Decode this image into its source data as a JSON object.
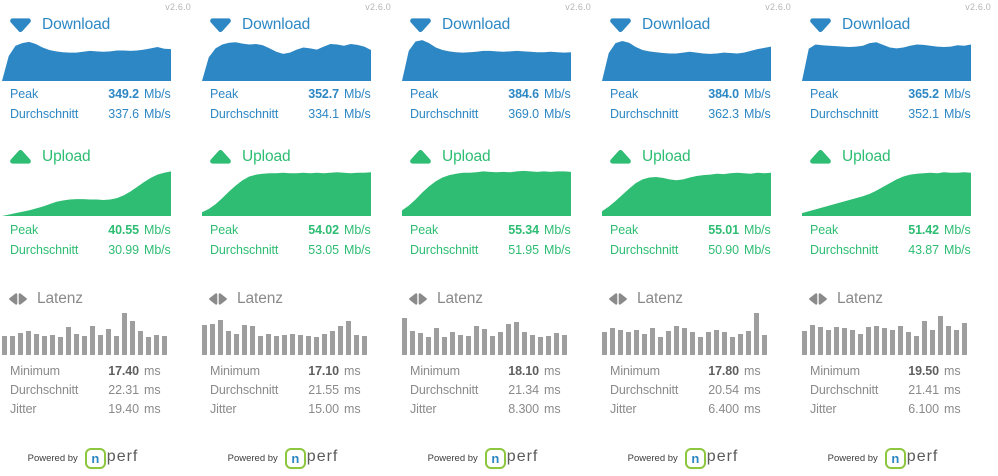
{
  "version": "v2.6.0",
  "powered_by": "Powered by",
  "logo": {
    "n": "n",
    "perf": "perf"
  },
  "labels": {
    "download": "Download",
    "upload": "Upload",
    "latency": "Latenz",
    "peak": "Peak",
    "avg": "Durchschnitt",
    "min": "Minimum",
    "jitter": "Jitter",
    "mbps": "Mb/s",
    "ms": "ms"
  },
  "colors": {
    "download": "#2D87C4",
    "upload": "#2EBD73",
    "latency_bar": "#9E9E9E",
    "latency_text": "#8A8A8A",
    "latency_text_dark": "#5F5F5F",
    "version_text": "#B5B5B5",
    "logo_green": "#8DC63F"
  },
  "columns": [
    {
      "download": {
        "peak": "349.2",
        "avg": "337.6"
      },
      "upload": {
        "peak": "40.55",
        "avg": "30.99"
      },
      "latency": {
        "min": "17.40",
        "avg": "22.31",
        "jitter": "19.40"
      }
    },
    {
      "download": {
        "peak": "352.7",
        "avg": "334.1"
      },
      "upload": {
        "peak": "54.02",
        "avg": "53.05"
      },
      "latency": {
        "min": "17.10",
        "avg": "21.55",
        "jitter": "15.00"
      }
    },
    {
      "download": {
        "peak": "384.6",
        "avg": "369.0"
      },
      "upload": {
        "peak": "55.34",
        "avg": "51.95"
      },
      "latency": {
        "min": "18.10",
        "avg": "21.34",
        "jitter": "8.300"
      }
    },
    {
      "download": {
        "peak": "384.0",
        "avg": "362.3"
      },
      "upload": {
        "peak": "55.01",
        "avg": "50.90"
      },
      "latency": {
        "min": "17.80",
        "avg": "20.54",
        "jitter": "6.400"
      }
    },
    {
      "download": {
        "peak": "365.2",
        "avg": "352.1"
      },
      "upload": {
        "peak": "51.42",
        "avg": "43.87"
      },
      "latency": {
        "min": "19.50",
        "avg": "21.41",
        "jitter": "6.100"
      }
    }
  ],
  "chart_data": [
    {
      "column": 1,
      "download": {
        "type": "area",
        "unit": "Mb/s",
        "peak": 349.2,
        "average": 337.6,
        "points_pct": [
          0,
          58,
          82,
          88,
          91,
          86,
          78,
          72,
          69,
          67,
          66,
          66,
          68,
          70,
          69,
          68,
          69,
          71,
          71,
          70,
          71,
          73,
          76,
          79,
          75,
          74
        ]
      },
      "upload": {
        "type": "area",
        "unit": "Mb/s",
        "peak": 40.55,
        "average": 30.99,
        "points_pct": [
          0,
          3,
          6,
          9,
          12,
          16,
          20,
          25,
          30,
          33,
          35,
          36,
          36,
          35,
          35,
          34,
          35,
          38,
          44,
          52,
          62,
          72,
          81,
          88,
          92,
          95
        ]
      },
      "latency": {
        "type": "bar",
        "unit": "ms",
        "minimum": 17.4,
        "average": 22.31,
        "jitter": 19.4,
        "bars_pct": [
          46,
          46,
          52,
          58,
          50,
          46,
          48,
          44,
          66,
          50,
          46,
          70,
          48,
          62,
          46,
          100,
          80,
          58,
          44,
          48,
          46
        ]
      }
    },
    {
      "column": 2,
      "download": {
        "type": "area",
        "unit": "Mb/s",
        "peak": 352.7,
        "average": 334.1,
        "points_pct": [
          0,
          55,
          76,
          85,
          89,
          90,
          87,
          85,
          86,
          83,
          76,
          68,
          63,
          66,
          73,
          78,
          76,
          73,
          80,
          86,
          85,
          82,
          86,
          84,
          80,
          72
        ]
      },
      "upload": {
        "type": "area",
        "unit": "Mb/s",
        "peak": 54.02,
        "average": 53.05,
        "points_pct": [
          8,
          15,
          25,
          38,
          52,
          65,
          76,
          84,
          88,
          90,
          91,
          91,
          92,
          91,
          91,
          92,
          91,
          92,
          91,
          92,
          93,
          92,
          91,
          92,
          92,
          93
        ]
      },
      "latency": {
        "type": "bar",
        "unit": "ms",
        "minimum": 17.1,
        "average": 21.55,
        "jitter": 15.0,
        "bars_pct": [
          72,
          74,
          84,
          58,
          50,
          72,
          70,
          46,
          50,
          46,
          48,
          50,
          48,
          46,
          44,
          50,
          56,
          68,
          80,
          48,
          46
        ]
      }
    },
    {
      "column": 3,
      "download": {
        "type": "area",
        "unit": "Mb/s",
        "peak": 384.6,
        "average": 369.0,
        "points_pct": [
          0,
          70,
          92,
          95,
          88,
          78,
          72,
          69,
          67,
          66,
          67,
          68,
          70,
          70,
          69,
          68,
          69,
          70,
          69,
          68,
          67,
          67,
          68,
          67,
          66,
          67
        ]
      },
      "upload": {
        "type": "area",
        "unit": "Mb/s",
        "peak": 55.34,
        "average": 51.95,
        "points_pct": [
          12,
          22,
          35,
          50,
          63,
          74,
          82,
          87,
          90,
          92,
          92,
          93,
          95,
          94,
          93,
          94,
          93,
          95,
          96,
          95,
          94,
          95,
          94,
          95,
          95,
          94
        ]
      },
      "latency": {
        "type": "bar",
        "unit": "ms",
        "minimum": 18.1,
        "average": 21.34,
        "jitter": 8.3,
        "bars_pct": [
          88,
          58,
          52,
          44,
          64,
          44,
          54,
          48,
          46,
          68,
          62,
          46,
          54,
          74,
          78,
          54,
          48,
          44,
          46,
          52,
          48
        ]
      }
    },
    {
      "column": 4,
      "download": {
        "type": "area",
        "unit": "Mb/s",
        "peak": 384.0,
        "average": 362.3,
        "points_pct": [
          0,
          65,
          88,
          93,
          89,
          79,
          72,
          69,
          67,
          65,
          64,
          64,
          66,
          68,
          66,
          64,
          63,
          64,
          66,
          65,
          64,
          66,
          70,
          74,
          77,
          80
        ]
      },
      "upload": {
        "type": "area",
        "unit": "Mb/s",
        "peak": 55.01,
        "average": 50.9,
        "points_pct": [
          10,
          20,
          32,
          45,
          58,
          70,
          78,
          82,
          83,
          81,
          78,
          76,
          78,
          82,
          85,
          87,
          88,
          90,
          89,
          91,
          92,
          91,
          90,
          92,
          91,
          92
        ]
      },
      "latency": {
        "type": "bar",
        "unit": "ms",
        "minimum": 17.8,
        "average": 20.54,
        "jitter": 6.4,
        "bars_pct": [
          54,
          64,
          60,
          54,
          60,
          50,
          64,
          44,
          58,
          68,
          64,
          54,
          44,
          54,
          60,
          54,
          44,
          50,
          58,
          100,
          48
        ]
      }
    },
    {
      "column": 5,
      "download": {
        "type": "area",
        "unit": "Mb/s",
        "peak": 365.2,
        "average": 352.1,
        "points_pct": [
          0,
          75,
          85,
          83,
          82,
          81,
          80,
          79,
          80,
          82,
          88,
          90,
          84,
          78,
          76,
          78,
          82,
          85,
          84,
          82,
          80,
          79,
          80,
          83,
          82,
          85
        ]
      },
      "upload": {
        "type": "area",
        "unit": "Mb/s",
        "peak": 51.42,
        "average": 43.87,
        "points_pct": [
          6,
          10,
          14,
          18,
          22,
          26,
          30,
          34,
          38,
          42,
          47,
          54,
          62,
          70,
          78,
          84,
          88,
          90,
          91,
          92,
          91,
          93,
          92,
          92,
          93,
          92
        ]
      },
      "latency": {
        "type": "bar",
        "unit": "ms",
        "minimum": 19.5,
        "average": 21.41,
        "jitter": 6.1,
        "bars_pct": [
          56,
          72,
          66,
          60,
          66,
          64,
          60,
          50,
          66,
          70,
          64,
          60,
          70,
          54,
          46,
          80,
          60,
          92,
          70,
          60,
          76
        ]
      }
    }
  ]
}
